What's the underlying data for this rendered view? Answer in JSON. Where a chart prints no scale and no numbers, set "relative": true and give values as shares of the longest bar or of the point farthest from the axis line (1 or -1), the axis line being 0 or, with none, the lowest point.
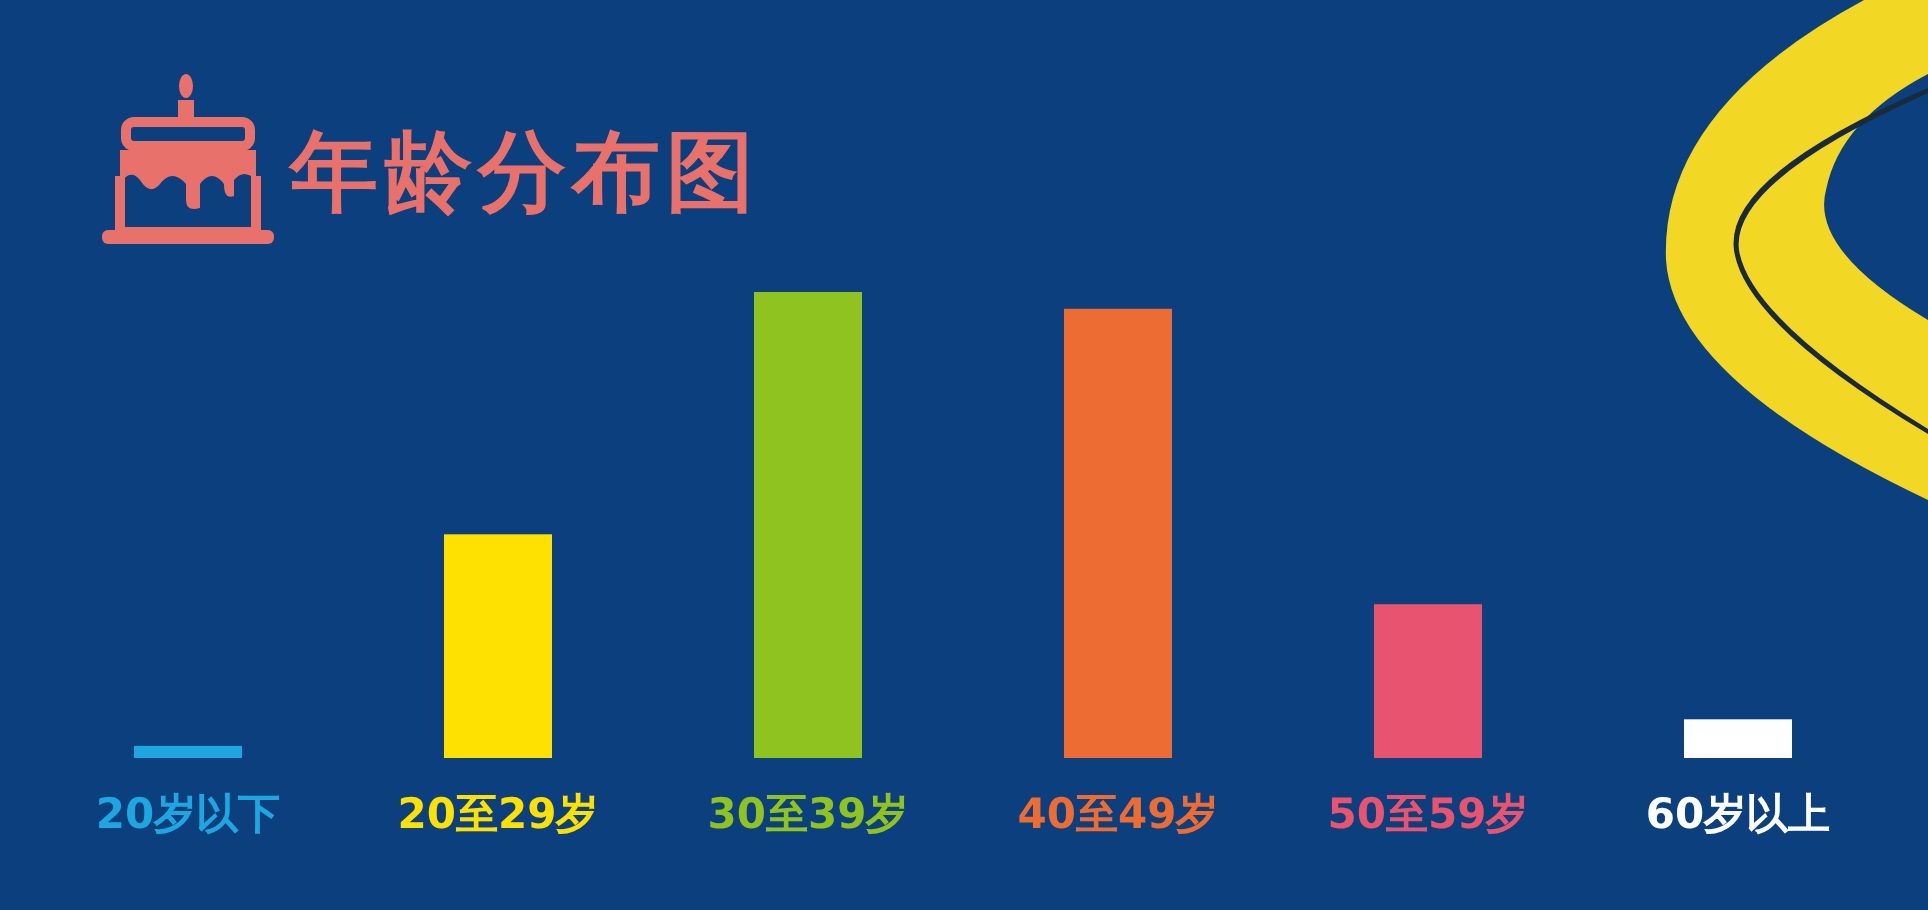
{
  "chart_data": {
    "type": "bar",
    "title": "年龄分布图",
    "relative": true,
    "categories": [
      "20岁以下",
      "20至29岁",
      "30至39岁",
      "40至49岁",
      "50至59岁",
      "60岁以上"
    ],
    "values": [
      0.026,
      0.48,
      1,
      0.964,
      0.33,
      0.083
    ],
    "colors": [
      "#1ea6e0",
      "#ffe100",
      "#8fc31f",
      "#ec6c33",
      "#e85470",
      "#ffffff"
    ]
  }
}
